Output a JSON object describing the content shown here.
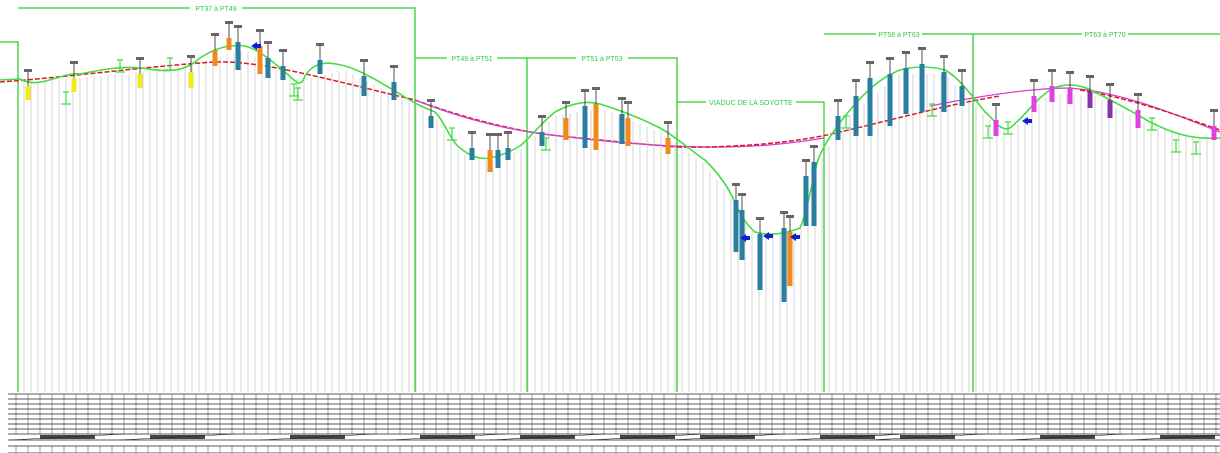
{
  "drawing": {
    "colors": {
      "background": "#ffffff",
      "section_frame": "#33cc33",
      "terrain_line": "#44dd44",
      "profile_line_red": "#d62020",
      "profile_line_magenta": "#d040d0",
      "hatch": "#c8c8c8",
      "table_line": "#222222",
      "bar_blue": "#2a7fa0",
      "bar_orange": "#f08a1c",
      "bar_yellow": "#f2ea1a",
      "bar_magenta": "#e040e0",
      "bar_purple": "#8833aa",
      "arrow_blue": "#1020d0"
    },
    "sections": [
      {
        "label": "PT37 à PT49"
      },
      {
        "label": "PT49 à PT51"
      },
      {
        "label": "PT51 à PT53"
      },
      {
        "label": "VIADUC DE LA SOYOTTE"
      },
      {
        "label": "PT58 à PT63"
      },
      {
        "label": "PT63 à PT70"
      }
    ]
  }
}
